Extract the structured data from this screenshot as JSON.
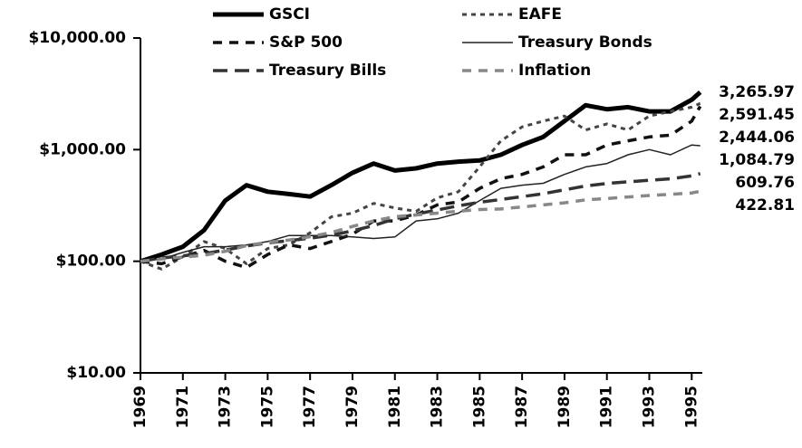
{
  "chart_data": {
    "type": "line",
    "log_scale": true,
    "x": [
      1969,
      1970,
      1971,
      1972,
      1973,
      1974,
      1975,
      1976,
      1977,
      1978,
      1979,
      1980,
      1981,
      1982,
      1983,
      1984,
      1985,
      1986,
      1987,
      1988,
      1989,
      1990,
      1991,
      1992,
      1993,
      1994,
      1995,
      1995.4
    ],
    "xlim": [
      1969,
      1995.5
    ],
    "xticks": [
      1969,
      1971,
      1973,
      1975,
      1977,
      1979,
      1981,
      1983,
      1985,
      1987,
      1989,
      1991,
      1993,
      1995
    ],
    "ylim": [
      10,
      10000
    ],
    "yticks": [
      {
        "value": 10,
        "label": "$10.00"
      },
      {
        "value": 100,
        "label": "$100.00"
      },
      {
        "value": 1000,
        "label": "$1,000.00"
      },
      {
        "value": 10000,
        "label": "$10,000.00"
      }
    ],
    "series": [
      {
        "name": "GSCI",
        "color": "#000000",
        "values": [
          100,
          115,
          135,
          190,
          350,
          480,
          420,
          400,
          380,
          480,
          620,
          750,
          650,
          680,
          750,
          780,
          800,
          900,
          1100,
          1300,
          1800,
          2500,
          2300,
          2400,
          2200,
          2200,
          2800,
          3265.97
        ],
        "value_labels": [
          null,
          null,
          null,
          null,
          null,
          null,
          null,
          null,
          null,
          null,
          null,
          null,
          null,
          null,
          null,
          null,
          null,
          null,
          null,
          null,
          null,
          null,
          null,
          null,
          null,
          null,
          null,
          "3,265.97"
        ]
      },
      {
        "name": "EAFE",
        "color": "#444444",
        "values": [
          100,
          85,
          110,
          150,
          130,
          95,
          130,
          140,
          180,
          250,
          270,
          330,
          300,
          280,
          370,
          420,
          700,
          1200,
          1600,
          1800,
          2000,
          1500,
          1700,
          1500,
          2000,
          2200,
          2400,
          2591.45
        ],
        "value_labels": [
          null,
          null,
          null,
          null,
          null,
          null,
          null,
          null,
          null,
          null,
          null,
          null,
          null,
          null,
          null,
          null,
          null,
          null,
          null,
          null,
          null,
          null,
          null,
          null,
          null,
          null,
          null,
          "2,591.45"
        ]
      },
      {
        "name": "S&P 500",
        "color": "#111111",
        "values": [
          100,
          95,
          110,
          125,
          100,
          88,
          115,
          140,
          130,
          150,
          175,
          230,
          230,
          260,
          320,
          340,
          450,
          550,
          600,
          700,
          900,
          900,
          1100,
          1200,
          1300,
          1350,
          1800,
          2444.06
        ],
        "value_labels": [
          null,
          null,
          null,
          null,
          null,
          null,
          null,
          null,
          null,
          null,
          null,
          null,
          null,
          null,
          null,
          null,
          null,
          null,
          null,
          null,
          null,
          null,
          null,
          null,
          null,
          null,
          null,
          "2,444.06"
        ]
      },
      {
        "name": "Treasury Bonds",
        "color": "#222222",
        "values": [
          100,
          105,
          120,
          135,
          135,
          140,
          150,
          170,
          170,
          170,
          165,
          160,
          165,
          230,
          240,
          270,
          350,
          450,
          480,
          500,
          600,
          700,
          750,
          900,
          1000,
          900,
          1100,
          1084.79
        ],
        "value_labels": [
          null,
          null,
          null,
          null,
          null,
          null,
          null,
          null,
          null,
          null,
          null,
          null,
          null,
          null,
          null,
          null,
          null,
          null,
          null,
          null,
          null,
          null,
          null,
          null,
          null,
          null,
          null,
          "1,084.79"
        ]
      },
      {
        "name": "Treasury Bills",
        "color": "#333333",
        "values": [
          100,
          107,
          112,
          117,
          126,
          137,
          146,
          153,
          161,
          171,
          187,
          209,
          240,
          265,
          288,
          314,
          338,
          358,
          379,
          403,
          437,
          472,
          498,
          515,
          531,
          548,
          582,
          609.76
        ],
        "value_labels": [
          null,
          null,
          null,
          null,
          null,
          null,
          null,
          null,
          null,
          null,
          null,
          null,
          null,
          null,
          null,
          null,
          null,
          null,
          null,
          null,
          null,
          null,
          null,
          null,
          null,
          null,
          null,
          "609.76"
        ]
      },
      {
        "name": "Inflation",
        "color": "#888888",
        "values": [
          100,
          105,
          109,
          113,
          123,
          138,
          148,
          155,
          166,
          181,
          205,
          230,
          251,
          260,
          270,
          281,
          291,
          294,
          307,
          320,
          334,
          355,
          365,
          377,
          388,
          398,
          409,
          422.81
        ],
        "value_labels": [
          null,
          null,
          null,
          null,
          null,
          null,
          null,
          null,
          null,
          null,
          null,
          null,
          null,
          null,
          null,
          null,
          null,
          null,
          null,
          null,
          null,
          null,
          null,
          null,
          null,
          null,
          null,
          "422.81"
        ]
      }
    ]
  }
}
